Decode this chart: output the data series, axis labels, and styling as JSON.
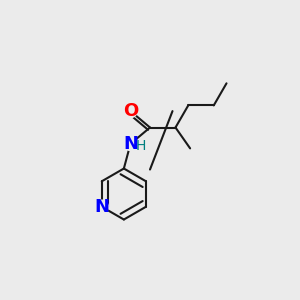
{
  "bg_color": "#ebebeb",
  "bond_color": "#1a1a1a",
  "bond_width": 1.5,
  "O_color": "#ff0000",
  "N_color": "#0000ff",
  "H_color": "#008080",
  "figsize": [
    3.0,
    3.0
  ],
  "dpi": 100,
  "xlim": [
    0.0,
    1.0
  ],
  "ylim": [
    0.0,
    1.0
  ]
}
